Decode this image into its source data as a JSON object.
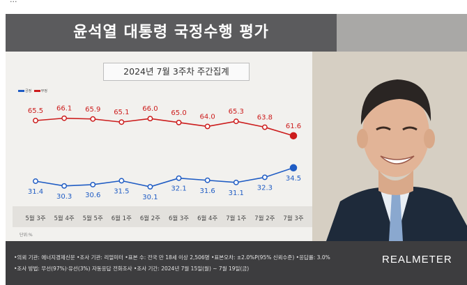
{
  "top_strip_text": "...",
  "title": "윤석열 대통령 국정수행 평가",
  "subtitle": "2024년 7월 3주차 주간집계",
  "legend": {
    "labels": [
      "긍정",
      "부정"
    ]
  },
  "unit": "단위:%",
  "colors": {
    "negative": "#cc1c1c",
    "positive": "#1f5cc4"
  },
  "chart_data": {
    "type": "line",
    "categories": [
      "5월 3주",
      "5월 4주",
      "5월 5주",
      "6월 1주",
      "6월 2주",
      "6월 3주",
      "6월 4주",
      "7월 1주",
      "7월 2주",
      "7월 3주"
    ],
    "series": [
      {
        "name": "부정",
        "values": [
          65.5,
          66.1,
          65.9,
          65.1,
          66.0,
          65.0,
          64.0,
          65.3,
          63.8,
          61.6
        ]
      },
      {
        "name": "긍정",
        "values": [
          31.4,
          30.3,
          30.6,
          31.5,
          30.1,
          32.1,
          31.6,
          31.1,
          32.3,
          34.5
        ]
      }
    ]
  },
  "footer": {
    "line1": "•의뢰 기관: 에너지경제신문 •조사 기관: 리얼미터 •표본 수: 전국 만 18세 이상 2,506명 •표본오차: ±2.0%P(95% 신뢰수준) •응답률: 3.0%",
    "line2": "•조사 방법: 무선(97%)·유선(3%) 자동응답 전화조사 •조사 기간: 2024년 7월 15일(월) ~ 7월 19일(금)",
    "brand": "REALMETER"
  }
}
